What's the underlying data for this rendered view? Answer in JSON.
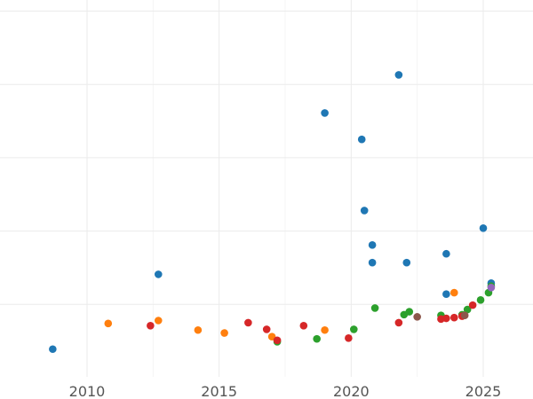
{
  "chart_data": {
    "type": "scatter",
    "title": "",
    "xlabel": "",
    "ylabel": "",
    "grid": true,
    "xlim": [
      2009.0,
      2026.8
    ],
    "ylim": [
      0,
      5.3
    ],
    "x_ticks": [
      2010,
      2015,
      2020,
      2025
    ],
    "x_tick_labels": [
      "2010",
      "2015",
      "2020",
      "2025"
    ],
    "y_gridlines": [
      1,
      2,
      3,
      4,
      5
    ],
    "colors": {
      "blue": "#1f77b4",
      "orange": "#ff7f0e",
      "green": "#2ca02c",
      "red": "#d62728",
      "purple": "#9467bd",
      "brown": "#8c564b"
    },
    "series": [
      {
        "color": "#1f77b4",
        "points": [
          {
            "x": 2008.7,
            "y": 0.39
          },
          {
            "x": 2012.7,
            "y": 1.41
          },
          {
            "x": 2019.0,
            "y": 3.61
          },
          {
            "x": 2020.4,
            "y": 3.25
          },
          {
            "x": 2020.5,
            "y": 2.28
          },
          {
            "x": 2020.8,
            "y": 1.81
          },
          {
            "x": 2020.8,
            "y": 1.57
          },
          {
            "x": 2021.8,
            "y": 4.13
          },
          {
            "x": 2022.1,
            "y": 1.57
          },
          {
            "x": 2023.6,
            "y": 1.69
          },
          {
            "x": 2023.6,
            "y": 1.14
          },
          {
            "x": 2025.0,
            "y": 2.04
          },
          {
            "x": 2025.3,
            "y": 1.29
          }
        ]
      },
      {
        "color": "#ff7f0e",
        "points": [
          {
            "x": 2010.8,
            "y": 0.74
          },
          {
            "x": 2012.7,
            "y": 0.78
          },
          {
            "x": 2014.2,
            "y": 0.65
          },
          {
            "x": 2015.2,
            "y": 0.61
          },
          {
            "x": 2017.0,
            "y": 0.56
          },
          {
            "x": 2019.0,
            "y": 0.65
          },
          {
            "x": 2023.9,
            "y": 1.16
          }
        ]
      },
      {
        "color": "#2ca02c",
        "points": [
          {
            "x": 2017.2,
            "y": 0.49
          },
          {
            "x": 2018.7,
            "y": 0.53
          },
          {
            "x": 2020.1,
            "y": 0.66
          },
          {
            "x": 2020.9,
            "y": 0.95
          },
          {
            "x": 2022.0,
            "y": 0.86
          },
          {
            "x": 2022.2,
            "y": 0.9
          },
          {
            "x": 2023.4,
            "y": 0.85
          },
          {
            "x": 2024.2,
            "y": 0.86
          },
          {
            "x": 2024.4,
            "y": 0.93
          },
          {
            "x": 2024.9,
            "y": 1.06
          },
          {
            "x": 2025.2,
            "y": 1.16
          },
          {
            "x": 2025.3,
            "y": 1.25
          }
        ]
      },
      {
        "color": "#d62728",
        "points": [
          {
            "x": 2012.4,
            "y": 0.71
          },
          {
            "x": 2016.1,
            "y": 0.75
          },
          {
            "x": 2016.8,
            "y": 0.66
          },
          {
            "x": 2017.2,
            "y": 0.51
          },
          {
            "x": 2018.2,
            "y": 0.71
          },
          {
            "x": 2019.9,
            "y": 0.54
          },
          {
            "x": 2021.8,
            "y": 0.75
          },
          {
            "x": 2023.4,
            "y": 0.8
          },
          {
            "x": 2023.6,
            "y": 0.81
          },
          {
            "x": 2023.9,
            "y": 0.82
          },
          {
            "x": 2024.2,
            "y": 0.84
          },
          {
            "x": 2024.6,
            "y": 0.99
          }
        ]
      },
      {
        "color": "#9467bd",
        "points": [
          {
            "x": 2025.3,
            "y": 1.23
          }
        ]
      },
      {
        "color": "#8c564b",
        "points": [
          {
            "x": 2022.5,
            "y": 0.83
          },
          {
            "x": 2024.3,
            "y": 0.85
          }
        ]
      }
    ]
  }
}
